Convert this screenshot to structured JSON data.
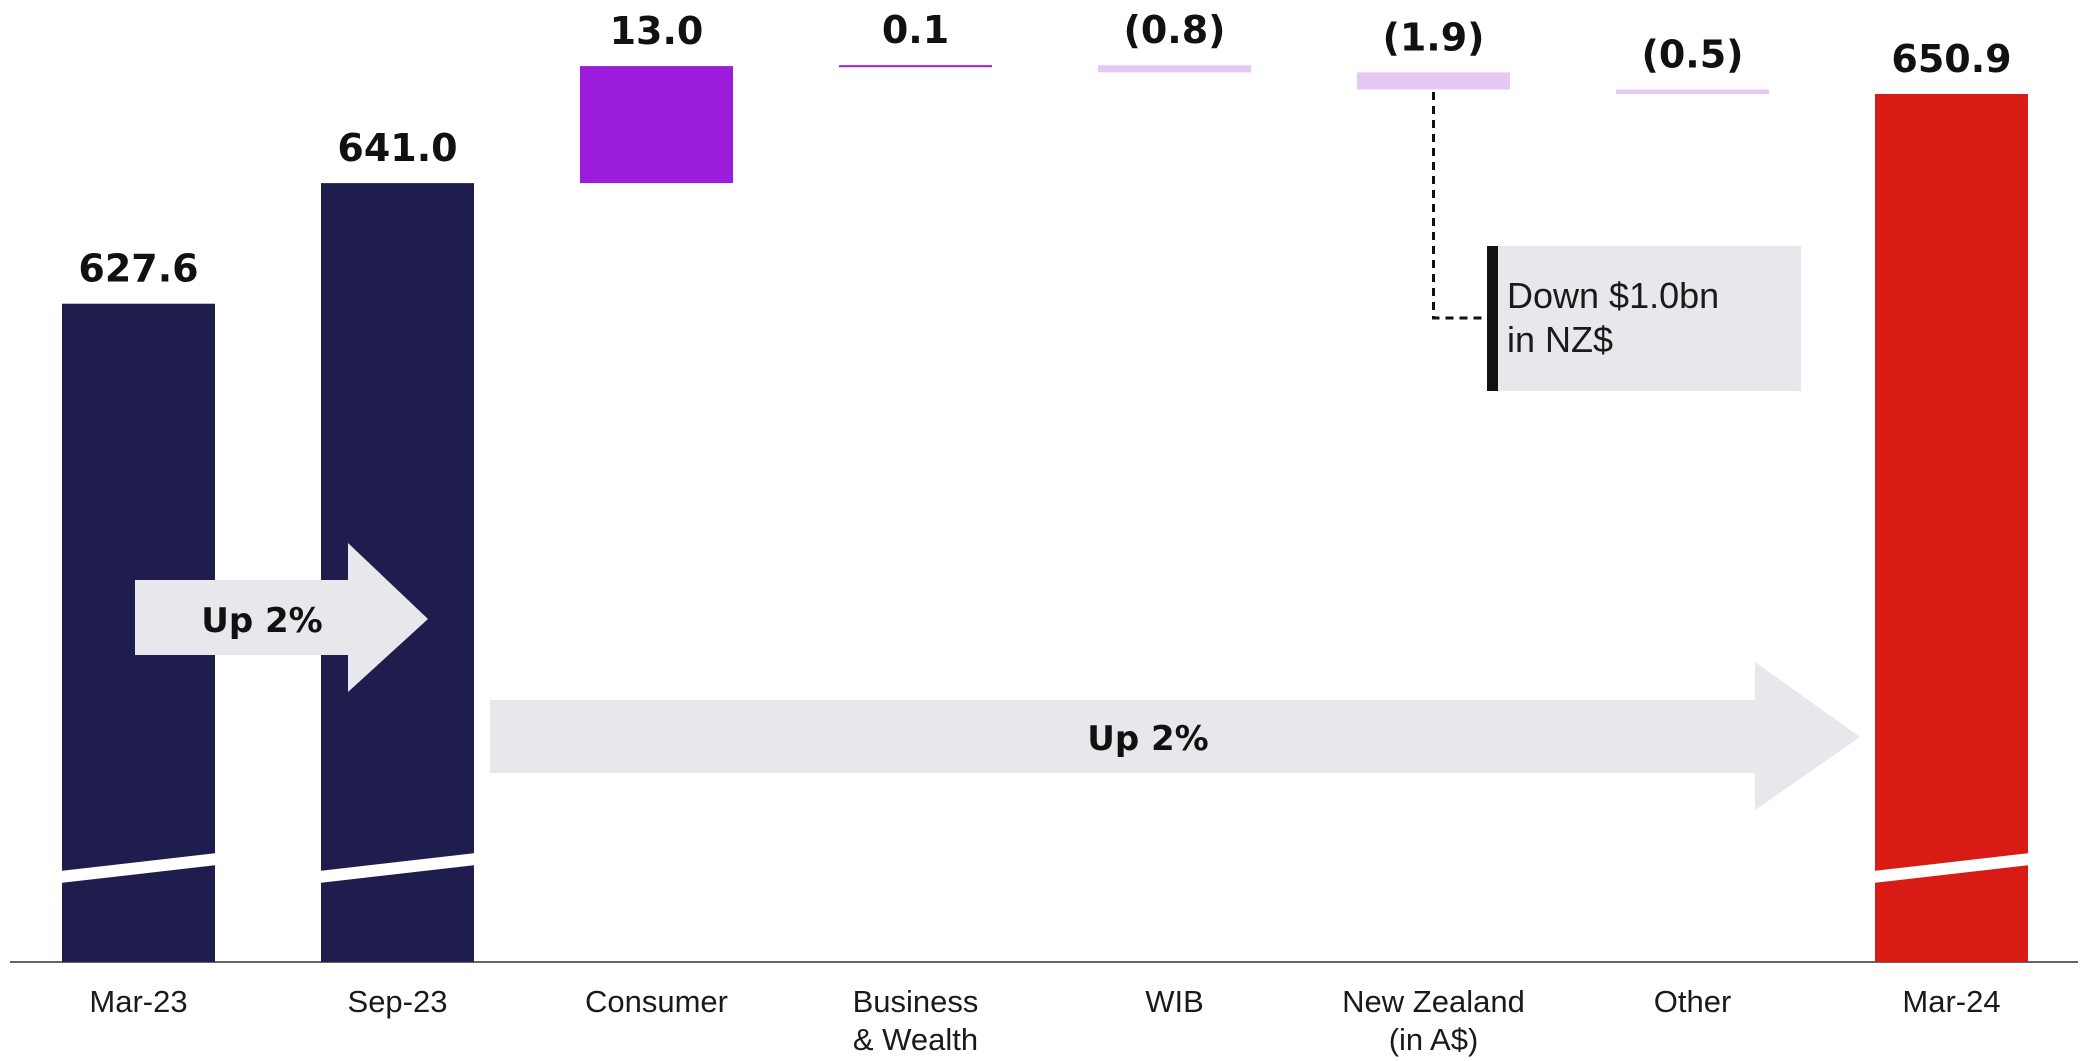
{
  "chart_data": {
    "type": "bar",
    "subtype": "waterfall",
    "categories": [
      [
        "Mar-23"
      ],
      [
        "Sep-23"
      ],
      [
        "Consumer"
      ],
      [
        "Business",
        "& Wealth"
      ],
      [
        "WIB"
      ],
      [
        "New Zealand",
        "(in A$)"
      ],
      [
        "Other"
      ],
      [
        "Mar-24"
      ]
    ],
    "bars": [
      {
        "kind": "total",
        "value": 627.6,
        "label": "627.6",
        "color": "#1f1d4d"
      },
      {
        "kind": "total",
        "value": 641.0,
        "label": "641.0",
        "color": "#1f1d4d"
      },
      {
        "kind": "delta",
        "value": 13.0,
        "label": "13.0",
        "color": "#9b1ddb"
      },
      {
        "kind": "delta",
        "value": 0.1,
        "label": "0.1",
        "color": "#9b1ddb"
      },
      {
        "kind": "delta",
        "value": -0.8,
        "label": "(0.8)",
        "color": "#e7c8f5"
      },
      {
        "kind": "delta",
        "value": -1.9,
        "label": "(1.9)",
        "color": "#e7c8f5"
      },
      {
        "kind": "delta",
        "value": -0.5,
        "label": "(0.5)",
        "color": "#e7c8f5"
      },
      {
        "kind": "total",
        "value": 650.9,
        "label": "650.9",
        "color": "#d81b14"
      }
    ],
    "axis_break": true,
    "annotations": {
      "short_arrow": {
        "text": "Up 2%",
        "from": 0,
        "to": 1
      },
      "long_arrow": {
        "text": "Up 2%",
        "from": 1,
        "to": 7
      },
      "callout": {
        "lines": [
          "Down $1.0bn",
          "in NZ$"
        ],
        "bar": 5
      }
    },
    "colors": {
      "arrow": "#e8e8ec",
      "callout_bg": "#e8e8ec",
      "callout_marker": "#111111",
      "axis": "#666666"
    }
  }
}
